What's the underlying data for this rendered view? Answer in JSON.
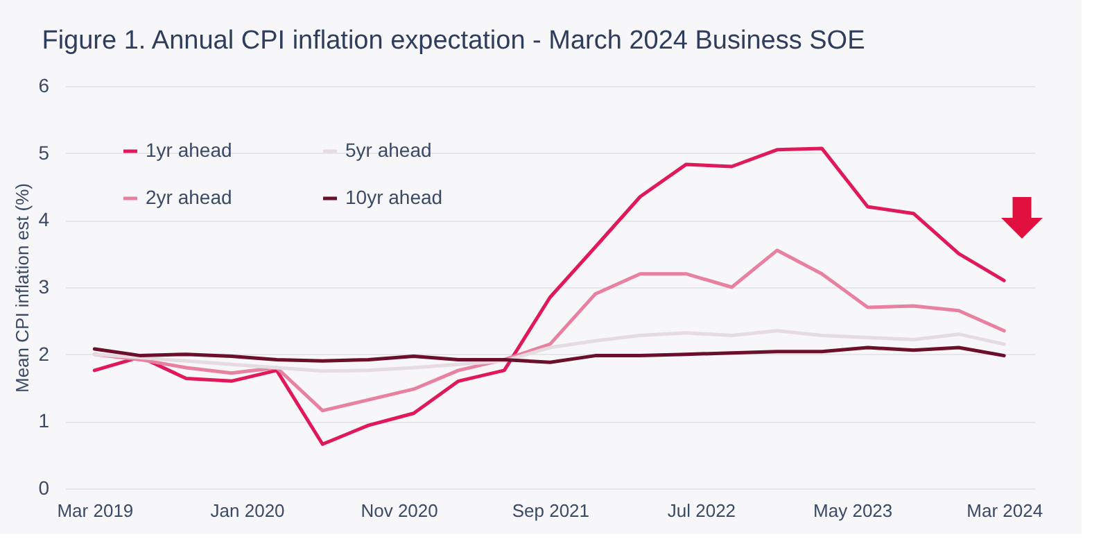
{
  "chart_data": {
    "type": "line",
    "title": "Figure 1. Annual CPI inflation expectation - March 2024 Business SOE",
    "ylabel": "Mean CPI inflation est (%)",
    "x": [
      "2019-03",
      "2019-06",
      "2019-09",
      "2019-12",
      "2020-03",
      "2020-06",
      "2020-09",
      "2020-12",
      "2021-03",
      "2021-06",
      "2021-09",
      "2021-12",
      "2022-03",
      "2022-06",
      "2022-09",
      "2022-12",
      "2023-03",
      "2023-06",
      "2023-09",
      "2023-12",
      "2024-03"
    ],
    "series": [
      {
        "name": "1yr ahead",
        "color": "#e0195a",
        "values": [
          1.76,
          1.96,
          1.64,
          1.6,
          1.76,
          0.66,
          0.94,
          1.12,
          1.6,
          1.76,
          2.85,
          3.6,
          4.35,
          4.83,
          4.8,
          5.05,
          5.07,
          4.2,
          4.1,
          3.5,
          3.1
        ]
      },
      {
        "name": "2yr ahead",
        "color": "#e8809f",
        "values": [
          2.0,
          1.92,
          1.8,
          1.72,
          1.8,
          1.16,
          1.32,
          1.48,
          1.76,
          1.92,
          2.15,
          2.9,
          3.2,
          3.2,
          3.0,
          3.55,
          3.2,
          2.7,
          2.72,
          2.65,
          2.35
        ]
      },
      {
        "name": "5yr ahead",
        "color": "#e6dbe0",
        "values": [
          2.0,
          1.95,
          1.9,
          1.85,
          1.8,
          1.75,
          1.76,
          1.8,
          1.85,
          1.9,
          2.1,
          2.2,
          2.28,
          2.32,
          2.28,
          2.35,
          2.28,
          2.25,
          2.22,
          2.3,
          2.15
        ]
      },
      {
        "name": "10yr ahead",
        "color": "#6b0f2a",
        "values": [
          2.08,
          1.98,
          2.0,
          1.97,
          1.92,
          1.9,
          1.92,
          1.97,
          1.92,
          1.92,
          1.88,
          1.98,
          1.98,
          2.0,
          2.02,
          2.04,
          2.04,
          2.1,
          2.06,
          2.1,
          1.98
        ]
      }
    ],
    "xlim": [
      "2019-01",
      "2024-05"
    ],
    "xticks": [
      {
        "value": "2019-03",
        "label": "Mar 2019"
      },
      {
        "value": "2020-01",
        "label": "Jan 2020"
      },
      {
        "value": "2020-11",
        "label": "Nov 2020"
      },
      {
        "value": "2021-09",
        "label": "Sep 2021"
      },
      {
        "value": "2022-07",
        "label": "Jul 2022"
      },
      {
        "value": "2023-05",
        "label": "May 2023"
      },
      {
        "value": "2024-03",
        "label": "Mar 2024"
      }
    ],
    "ylim": [
      0,
      6
    ],
    "yticks": [
      0,
      1,
      2,
      3,
      4,
      5,
      6
    ],
    "grid": "y",
    "legend": "top left",
    "line_style": "solid",
    "marker": "none"
  }
}
